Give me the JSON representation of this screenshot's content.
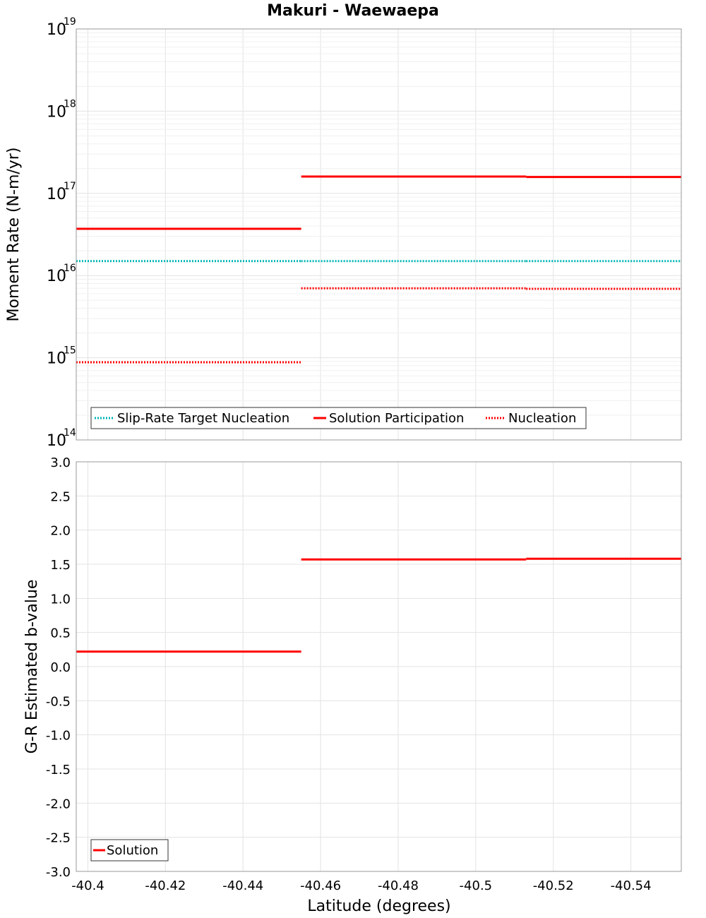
{
  "title": "Makuri - Waewaepa",
  "xlabel": "Latitude (degrees)",
  "x_range": [
    -40.397,
    -40.553
  ],
  "x_ticks": [
    -40.4,
    -40.42,
    -40.44,
    -40.46,
    -40.48,
    -40.5,
    -40.52,
    -40.54
  ],
  "x_tick_labels": [
    "-40.4",
    "-40.42",
    "-40.44",
    "-40.46",
    "-40.48",
    "-40.5",
    "-40.52",
    "-40.54"
  ],
  "chart_data": [
    {
      "type": "line",
      "scale": "log",
      "ylabel": "Moment Rate (N-m/yr)",
      "ylim_exponents": [
        14,
        19
      ],
      "y_tick_exponents": [
        14,
        15,
        16,
        17,
        18,
        19
      ],
      "y_tick_base": "10",
      "y_tick_exps": [
        "14",
        "15",
        "16",
        "17",
        "18",
        "19"
      ],
      "legend": {
        "position": "bottom-left",
        "entries": [
          "Slip-Rate Target Nucleation",
          "Solution Participation",
          "Nucleation"
        ]
      },
      "series": [
        {
          "name": "Slip-Rate Target Nucleation",
          "color": "#00b4b4",
          "style": "dotted",
          "segments": [
            {
              "x": [
                -40.397,
                -40.455
              ],
              "y": 1.5e+16
            },
            {
              "x": [
                -40.455,
                -40.513
              ],
              "y": 1.5e+16
            },
            {
              "x": [
                -40.513,
                -40.553
              ],
              "y": 1.5e+16
            }
          ]
        },
        {
          "name": "Solution Participation",
          "color": "#ff0000",
          "style": "solid",
          "segments": [
            {
              "x": [
                -40.397,
                -40.455
              ],
              "y": 3.7e+16
            },
            {
              "x": [
                -40.455,
                -40.513
              ],
              "y": 1.6e+17
            },
            {
              "x": [
                -40.513,
                -40.553
              ],
              "y": 1.58e+17
            }
          ]
        },
        {
          "name": "Nucleation",
          "color": "#ff0000",
          "style": "dotted",
          "segments": [
            {
              "x": [
                -40.397,
                -40.455
              ],
              "y": 880000000000000.0
            },
            {
              "x": [
                -40.455,
                -40.513
              ],
              "y": 7000000000000000.0
            },
            {
              "x": [
                -40.513,
                -40.553
              ],
              "y": 6900000000000000.0
            }
          ]
        }
      ]
    },
    {
      "type": "line",
      "scale": "linear",
      "ylabel": "G-R Estimated b-value",
      "ylim": [
        -3.0,
        3.0
      ],
      "y_ticks": [
        3.0,
        2.5,
        2.0,
        1.5,
        1.0,
        0.5,
        0.0,
        -0.5,
        -1.0,
        -1.5,
        -2.0,
        -2.5,
        -3.0
      ],
      "y_tick_labels": [
        "3.0",
        "2.5",
        "2.0",
        "1.5",
        "1.0",
        "0.5",
        "0.0",
        "-0.5",
        "-1.0",
        "-1.5",
        "-2.0",
        "-2.5",
        "-3.0"
      ],
      "legend": {
        "position": "bottom-left",
        "entries": [
          "Solution"
        ]
      },
      "series": [
        {
          "name": "Solution",
          "color": "#ff0000",
          "style": "solid",
          "segments": [
            {
              "x": [
                -40.397,
                -40.455
              ],
              "y": 0.22
            },
            {
              "x": [
                -40.455,
                -40.513
              ],
              "y": 1.57
            },
            {
              "x": [
                -40.513,
                -40.553
              ],
              "y": 1.58
            }
          ]
        }
      ]
    }
  ]
}
